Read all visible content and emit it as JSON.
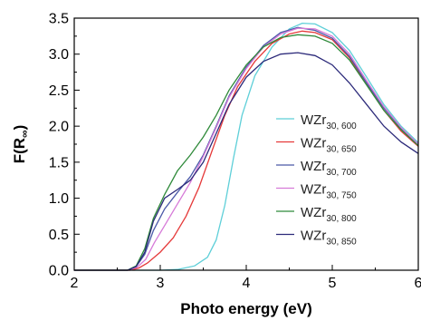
{
  "chart_data": {
    "type": "line",
    "title": "",
    "xlabel": "Photo energy (eV)",
    "ylabel_main": "F(R",
    "ylabel_sub": "∞",
    "ylabel_close": ")",
    "xlim": [
      2,
      6
    ],
    "ylim": [
      0,
      3.5
    ],
    "xticks": [
      "2",
      "3",
      "4",
      "5",
      "6"
    ],
    "yticks": [
      "0.0",
      "0.5",
      "1.0",
      "1.5",
      "2.0",
      "2.5",
      "3.0",
      "3.5"
    ],
    "grid": false,
    "legend_position": "center-right",
    "series": [
      {
        "name": "WZr30, 600",
        "label_main": "WZr",
        "label_sub": "30, 600",
        "color": "#5ecfd8",
        "points": [
          [
            2.0,
            0
          ],
          [
            3.0,
            0
          ],
          [
            3.2,
            0.01
          ],
          [
            3.4,
            0.06
          ],
          [
            3.55,
            0.18
          ],
          [
            3.65,
            0.42
          ],
          [
            3.75,
            0.9
          ],
          [
            3.85,
            1.55
          ],
          [
            3.95,
            2.15
          ],
          [
            4.1,
            2.7
          ],
          [
            4.3,
            3.1
          ],
          [
            4.5,
            3.35
          ],
          [
            4.65,
            3.43
          ],
          [
            4.8,
            3.42
          ],
          [
            5.0,
            3.3
          ],
          [
            5.2,
            3.05
          ],
          [
            5.4,
            2.68
          ],
          [
            5.6,
            2.3
          ],
          [
            5.8,
            2.0
          ],
          [
            6.0,
            1.77
          ]
        ]
      },
      {
        "name": "WZr30, 650",
        "label_main": "WZr",
        "label_sub": "30, 650",
        "color": "#e53a3a",
        "points": [
          [
            2.0,
            0
          ],
          [
            2.65,
            0
          ],
          [
            2.75,
            0.03
          ],
          [
            2.85,
            0.1
          ],
          [
            3.0,
            0.25
          ],
          [
            3.15,
            0.45
          ],
          [
            3.3,
            0.75
          ],
          [
            3.45,
            1.15
          ],
          [
            3.6,
            1.65
          ],
          [
            3.75,
            2.15
          ],
          [
            3.9,
            2.55
          ],
          [
            4.1,
            2.9
          ],
          [
            4.3,
            3.15
          ],
          [
            4.5,
            3.28
          ],
          [
            4.65,
            3.32
          ],
          [
            4.8,
            3.3
          ],
          [
            5.0,
            3.2
          ],
          [
            5.2,
            2.95
          ],
          [
            5.4,
            2.58
          ],
          [
            5.6,
            2.22
          ],
          [
            5.8,
            1.93
          ],
          [
            6.0,
            1.72
          ]
        ]
      },
      {
        "name": "WZr30, 700",
        "label_main": "WZr",
        "label_sub": "30, 700",
        "color": "#4a59a8",
        "points": [
          [
            2.0,
            0
          ],
          [
            2.62,
            0
          ],
          [
            2.72,
            0.05
          ],
          [
            2.82,
            0.22
          ],
          [
            2.92,
            0.55
          ],
          [
            3.05,
            0.85
          ],
          [
            3.2,
            1.08
          ],
          [
            3.35,
            1.3
          ],
          [
            3.5,
            1.6
          ],
          [
            3.65,
            2.0
          ],
          [
            3.8,
            2.42
          ],
          [
            4.0,
            2.82
          ],
          [
            4.2,
            3.12
          ],
          [
            4.4,
            3.3
          ],
          [
            4.6,
            3.37
          ],
          [
            4.8,
            3.33
          ],
          [
            5.0,
            3.22
          ],
          [
            5.2,
            2.97
          ],
          [
            5.4,
            2.6
          ],
          [
            5.6,
            2.25
          ],
          [
            5.8,
            1.97
          ],
          [
            6.0,
            1.75
          ]
        ]
      },
      {
        "name": "WZr30, 750",
        "label_main": "WZr",
        "label_sub": "30, 750",
        "color": "#d67ad8",
        "points": [
          [
            2.0,
            0
          ],
          [
            2.63,
            0
          ],
          [
            2.73,
            0.04
          ],
          [
            2.83,
            0.15
          ],
          [
            2.93,
            0.38
          ],
          [
            3.05,
            0.62
          ],
          [
            3.2,
            0.92
          ],
          [
            3.35,
            1.22
          ],
          [
            3.5,
            1.58
          ],
          [
            3.65,
            1.98
          ],
          [
            3.8,
            2.4
          ],
          [
            4.0,
            2.8
          ],
          [
            4.2,
            3.1
          ],
          [
            4.4,
            3.28
          ],
          [
            4.6,
            3.36
          ],
          [
            4.8,
            3.35
          ],
          [
            5.0,
            3.25
          ],
          [
            5.2,
            3.0
          ],
          [
            5.4,
            2.63
          ],
          [
            5.6,
            2.27
          ],
          [
            5.8,
            1.98
          ],
          [
            6.0,
            1.75
          ]
        ]
      },
      {
        "name": "WZr30, 800",
        "label_main": "WZr",
        "label_sub": "30, 800",
        "color": "#2f8a3a",
        "points": [
          [
            2.0,
            0
          ],
          [
            2.62,
            0
          ],
          [
            2.72,
            0.06
          ],
          [
            2.82,
            0.3
          ],
          [
            2.92,
            0.72
          ],
          [
            3.05,
            1.05
          ],
          [
            3.2,
            1.38
          ],
          [
            3.35,
            1.6
          ],
          [
            3.5,
            1.85
          ],
          [
            3.65,
            2.15
          ],
          [
            3.8,
            2.5
          ],
          [
            4.0,
            2.85
          ],
          [
            4.2,
            3.1
          ],
          [
            4.4,
            3.23
          ],
          [
            4.6,
            3.27
          ],
          [
            4.8,
            3.25
          ],
          [
            5.0,
            3.15
          ],
          [
            5.2,
            2.92
          ],
          [
            5.4,
            2.57
          ],
          [
            5.6,
            2.22
          ],
          [
            5.8,
            1.95
          ],
          [
            6.0,
            1.73
          ]
        ]
      },
      {
        "name": "WZr30, 850",
        "label_main": "WZr",
        "label_sub": "30, 850",
        "color": "#2c2a7a",
        "points": [
          [
            2.0,
            0
          ],
          [
            2.62,
            0
          ],
          [
            2.72,
            0.05
          ],
          [
            2.82,
            0.25
          ],
          [
            2.92,
            0.68
          ],
          [
            3.05,
            1.0
          ],
          [
            3.2,
            1.12
          ],
          [
            3.35,
            1.25
          ],
          [
            3.5,
            1.5
          ],
          [
            3.65,
            1.9
          ],
          [
            3.8,
            2.3
          ],
          [
            4.0,
            2.68
          ],
          [
            4.2,
            2.9
          ],
          [
            4.4,
            3.0
          ],
          [
            4.6,
            3.02
          ],
          [
            4.8,
            2.98
          ],
          [
            5.0,
            2.85
          ],
          [
            5.2,
            2.6
          ],
          [
            5.4,
            2.3
          ],
          [
            5.6,
            2.0
          ],
          [
            5.8,
            1.78
          ],
          [
            6.0,
            1.62
          ]
        ]
      }
    ]
  }
}
